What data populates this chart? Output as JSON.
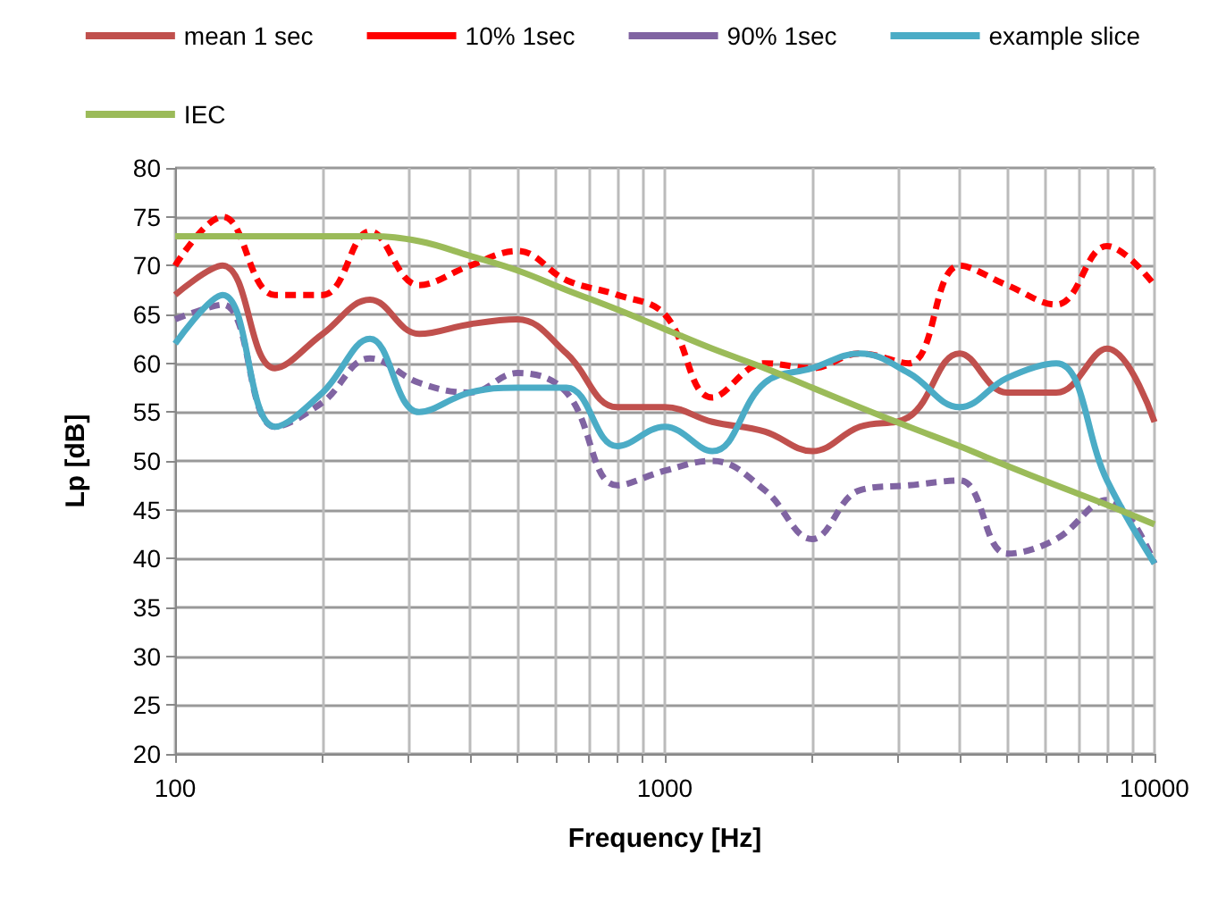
{
  "chart_data": {
    "type": "line",
    "xlabel": "Frequency [Hz]",
    "ylabel": "Lp [dB]",
    "x": [
      100,
      125,
      160,
      200,
      250,
      315,
      400,
      500,
      630,
      800,
      1000,
      1250,
      1600,
      2000,
      2500,
      3150,
      4000,
      5000,
      6300,
      8000,
      10000
    ],
    "log": "x",
    "xlim": [
      100,
      10000
    ],
    "xticks": [
      100,
      {
        "value": 200,
        "label": null
      },
      {
        "value": 300,
        "label": null
      },
      {
        "value": 400,
        "label": null
      },
      {
        "value": 500,
        "label": null
      },
      {
        "value": 600,
        "label": null
      },
      {
        "value": 700,
        "label": null
      },
      {
        "value": 800,
        "label": null
      },
      {
        "value": 900,
        "label": null
      },
      1000,
      {
        "value": 2000,
        "label": null
      },
      {
        "value": 3000,
        "label": null
      },
      {
        "value": 4000,
        "label": null
      },
      {
        "value": 5000,
        "label": null
      },
      {
        "value": 6000,
        "label": null
      },
      {
        "value": 7000,
        "label": null
      },
      {
        "value": 8000,
        "label": null
      },
      {
        "value": 9000,
        "label": null
      },
      10000
    ],
    "ylim": [
      20,
      80
    ],
    "yticks": [
      20,
      25,
      30,
      35,
      40,
      45,
      50,
      55,
      60,
      65,
      70,
      75,
      80
    ],
    "grid": true,
    "legend": "top",
    "marker": "none",
    "series": [
      {
        "name": "mean 1 sec",
        "color": "#c0504d",
        "line_style": "solid",
        "values": [
          67,
          70,
          59.5,
          63,
          66.5,
          63,
          64,
          64.5,
          61,
          55.5,
          55.5,
          54,
          53,
          51,
          53.5,
          54.5,
          61,
          57,
          57,
          61.5,
          54
        ]
      },
      {
        "name": "10% 1sec",
        "color": "#ff0000",
        "line_style": "dashed",
        "values": [
          70,
          75,
          67,
          67,
          73.5,
          68,
          70,
          71.5,
          68.5,
          67,
          65,
          56.5,
          60,
          59.5,
          61,
          60,
          70,
          68,
          66,
          72,
          68
        ]
      },
      {
        "name": "90% 1sec",
        "color": "#8064a2",
        "line_style": "dashed",
        "values": [
          64.5,
          66,
          53.5,
          56,
          60.5,
          58,
          57,
          59,
          57,
          47.5,
          49,
          50,
          47,
          42,
          47,
          47.5,
          48,
          40.5,
          42,
          46,
          39.5
        ]
      },
      {
        "name": "example slice",
        "color": "#4bacc6",
        "line_style": "solid",
        "values": [
          62,
          67,
          53.5,
          57,
          62.5,
          55,
          57,
          57.5,
          57.5,
          51.5,
          53.5,
          51,
          58,
          59.5,
          61,
          59,
          55.5,
          58.5,
          60,
          48,
          39.5
        ]
      },
      {
        "name": "IEC",
        "color": "#9bbb59",
        "line_style": "solid",
        "values": [
          73,
          73,
          73,
          73,
          73,
          72.5,
          71,
          69.5,
          67.5,
          65.5,
          63.5,
          61.5,
          59.5,
          57.5,
          55.5,
          53.5,
          51.5,
          49.5,
          47.5,
          45.5,
          43.5
        ]
      }
    ]
  }
}
